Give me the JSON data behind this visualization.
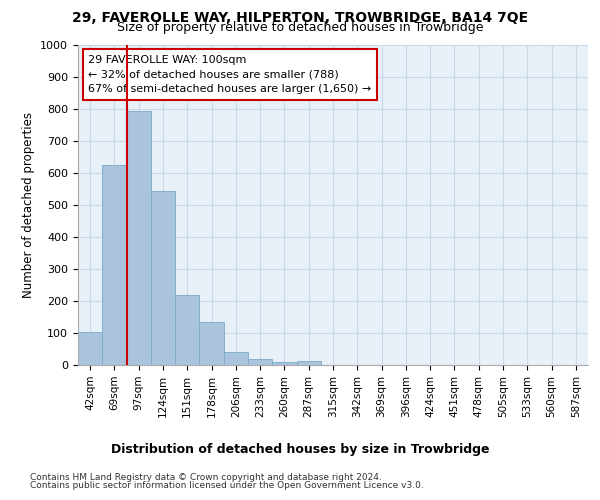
{
  "title": "29, FAVEROLLE WAY, HILPERTON, TROWBRIDGE, BA14 7QE",
  "subtitle": "Size of property relative to detached houses in Trowbridge",
  "xlabel": "Distribution of detached houses by size in Trowbridge",
  "ylabel": "Number of detached properties",
  "categories": [
    "42sqm",
    "69sqm",
    "97sqm",
    "124sqm",
    "151sqm",
    "178sqm",
    "206sqm",
    "233sqm",
    "260sqm",
    "287sqm",
    "315sqm",
    "342sqm",
    "369sqm",
    "396sqm",
    "424sqm",
    "451sqm",
    "478sqm",
    "505sqm",
    "533sqm",
    "560sqm",
    "587sqm"
  ],
  "values": [
    103,
    625,
    793,
    543,
    220,
    133,
    42,
    18,
    10,
    11,
    0,
    0,
    0,
    0,
    0,
    0,
    0,
    0,
    0,
    0,
    0
  ],
  "bar_color": "#aac4de",
  "bar_edge_color": "#7aaac8",
  "grid_color": "#c8d8e8",
  "background_color": "#e8f0f8",
  "vline_color": "#cc0000",
  "annotation_line1": "29 FAVEROLLE WAY: 100sqm",
  "annotation_line2": "← 32% of detached houses are smaller (788)",
  "annotation_line3": "67% of semi-detached houses are larger (1,650) →",
  "annotation_box_color": "#ffffff",
  "annotation_box_edge": "#cc0000",
  "ylim": [
    0,
    1000
  ],
  "yticks": [
    0,
    100,
    200,
    300,
    400,
    500,
    600,
    700,
    800,
    900,
    1000
  ],
  "footer1": "Contains HM Land Registry data © Crown copyright and database right 2024.",
  "footer2": "Contains public sector information licensed under the Open Government Licence v3.0."
}
